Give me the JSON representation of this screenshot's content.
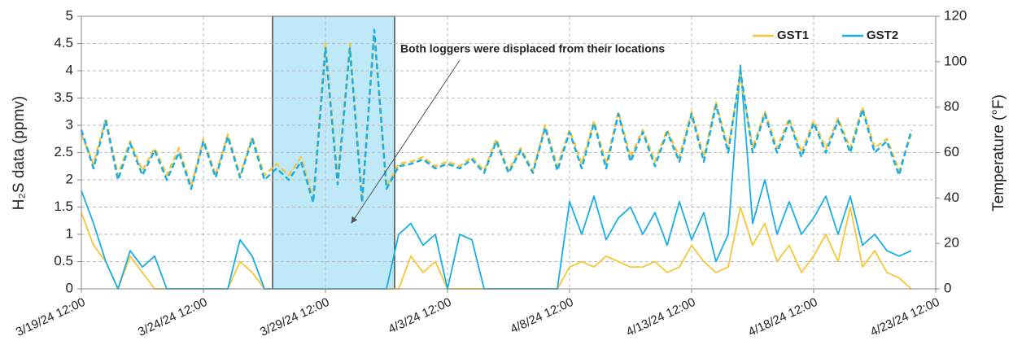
{
  "chart_data": {
    "type": "line",
    "y_label": "H₂S data (ppmv)",
    "y2_label": "Temperature (°F)",
    "annotation": "Both loggers were displaced from their locations",
    "legend": "upper right",
    "grid": true,
    "xlim": [
      "3/19/24 12:00",
      "4/23/24 12:00"
    ],
    "xticks": [
      "3/19/24 12:00",
      "3/24/24 12:00",
      "3/29/24 12:00",
      "4/3/24 12:00",
      "4/8/24 12:00",
      "4/13/24 12:00",
      "4/18/24 12:00",
      "4/23/24 12:00"
    ],
    "ylim": [
      0,
      5
    ],
    "yticks": [
      0,
      0.5,
      1,
      1.5,
      2,
      2.5,
      3,
      3.5,
      4,
      4.5,
      5
    ],
    "y2lim": [
      0,
      120
    ],
    "y2ticks": [
      0,
      20,
      40,
      60,
      80,
      100,
      120
    ],
    "shaded_region": {
      "x": [
        "3/27/24 8:00",
        "4/1/24 8:00"
      ],
      "color": "#bfe8f8"
    },
    "x": [
      "3/19/24 12:00",
      "3/20/24 0:00",
      "3/20/24 12:00",
      "3/21/24 0:00",
      "3/21/24 12:00",
      "3/22/24 0:00",
      "3/22/24 12:00",
      "3/23/24 0:00",
      "3/23/24 12:00",
      "3/24/24 0:00",
      "3/24/24 12:00",
      "3/25/24 0:00",
      "3/25/24 12:00",
      "3/26/24 0:00",
      "3/26/24 12:00",
      "3/27/24 0:00",
      "3/27/24 12:00",
      "3/28/24 0:00",
      "3/28/24 12:00",
      "3/29/24 0:00",
      "3/29/24 12:00",
      "3/30/24 0:00",
      "3/30/24 12:00",
      "3/31/24 0:00",
      "3/31/24 12:00",
      "4/1/24 0:00",
      "4/1/24 12:00",
      "4/2/24 0:00",
      "4/2/24 12:00",
      "4/3/24 0:00",
      "4/3/24 12:00",
      "4/4/24 0:00",
      "4/4/24 12:00",
      "4/5/24 0:00",
      "4/5/24 12:00",
      "4/6/24 0:00",
      "4/6/24 12:00",
      "4/7/24 0:00",
      "4/7/24 12:00",
      "4/8/24 0:00",
      "4/8/24 12:00",
      "4/9/24 0:00",
      "4/9/24 12:00",
      "4/10/24 0:00",
      "4/10/24 12:00",
      "4/11/24 0:00",
      "4/11/24 12:00",
      "4/12/24 0:00",
      "4/12/24 12:00",
      "4/13/24 0:00",
      "4/13/24 12:00",
      "4/14/24 0:00",
      "4/14/24 12:00",
      "4/15/24 0:00",
      "4/15/24 12:00",
      "4/16/24 0:00",
      "4/16/24 12:00",
      "4/17/24 0:00",
      "4/17/24 12:00",
      "4/18/24 0:00",
      "4/18/24 12:00",
      "4/19/24 0:00",
      "4/19/24 12:00",
      "4/20/24 0:00",
      "4/20/24 12:00",
      "4/21/24 0:00",
      "4/21/24 12:00",
      "4/22/24 0:00",
      "4/22/24 12:00"
    ],
    "series": [
      {
        "name": "GST1",
        "color": "#f7c537",
        "values": [
          1.4,
          0.8,
          0.5,
          0,
          0.6,
          0.3,
          0,
          0,
          0,
          0,
          0,
          0,
          0,
          0.5,
          0.3,
          0,
          0,
          0,
          0,
          0,
          0,
          0,
          0,
          0,
          0,
          0,
          0,
          0.6,
          0.3,
          0.5,
          0,
          0,
          0,
          0,
          0,
          0,
          0,
          0,
          0,
          0,
          0.4,
          0.5,
          0.4,
          0.6,
          0.5,
          0.4,
          0.4,
          0.5,
          0.3,
          0.4,
          0.8,
          0.5,
          0.3,
          0.4,
          1.5,
          0.8,
          1.2,
          0.5,
          0.8,
          0.3,
          0.6,
          1.0,
          0.5,
          1.5,
          0.4,
          0.7,
          0.3,
          0.2,
          0
        ]
      },
      {
        "name": "GST2",
        "color": "#19aee6",
        "values": [
          1.8,
          1.2,
          0.5,
          0,
          0.7,
          0.4,
          0.6,
          0,
          0,
          0,
          0,
          0,
          0,
          0.9,
          0.6,
          0,
          0,
          0,
          0,
          0,
          0,
          0,
          0,
          0,
          0,
          0,
          1.0,
          1.2,
          0.8,
          1.0,
          0,
          1.0,
          0.9,
          0,
          0,
          0,
          0,
          0,
          0,
          0,
          1.6,
          1.0,
          1.7,
          0.9,
          1.3,
          1.5,
          1.0,
          1.4,
          0.8,
          1.6,
          0.9,
          1.4,
          0.5,
          1.0,
          4.1,
          1.2,
          2.0,
          1.0,
          1.6,
          1.0,
          1.3,
          1.7,
          1.0,
          1.7,
          0.8,
          1.0,
          0.7,
          0.6,
          0.7
        ]
      },
      {
        "color": "#f7c537",
        "axis": "y2",
        "dashed": true,
        "values": [
          68,
          55,
          75,
          50,
          65,
          52,
          62,
          50,
          62,
          45,
          66,
          50,
          68,
          50,
          67,
          50,
          55,
          50,
          58,
          40,
          108,
          48,
          108,
          40,
          112,
          45,
          55,
          56,
          58,
          54,
          56,
          54,
          58,
          52,
          66,
          52,
          62,
          52,
          72,
          54,
          70,
          55,
          74,
          55,
          78,
          58,
          70,
          56,
          70,
          58,
          78,
          58,
          82,
          62,
          94,
          62,
          78,
          62,
          75,
          60,
          74,
          62,
          75,
          62,
          80,
          62,
          66,
          52,
          68
        ]
      },
      {
        "color": "#19aee6",
        "axis": "y2",
        "dashed": true,
        "values": [
          70,
          53,
          74,
          48,
          64,
          50,
          61,
          48,
          60,
          44,
          65,
          49,
          67,
          49,
          66,
          48,
          53,
          48,
          56,
          38,
          106,
          46,
          106,
          38,
          114,
          44,
          54,
          55,
          57,
          53,
          55,
          53,
          57,
          51,
          65,
          51,
          61,
          51,
          71,
          52,
          69,
          53,
          73,
          53,
          77,
          56,
          69,
          54,
          69,
          56,
          77,
          56,
          81,
          60,
          96,
          60,
          77,
          60,
          74,
          58,
          73,
          60,
          74,
          60,
          79,
          60,
          65,
          50,
          70
        ]
      }
    ]
  }
}
